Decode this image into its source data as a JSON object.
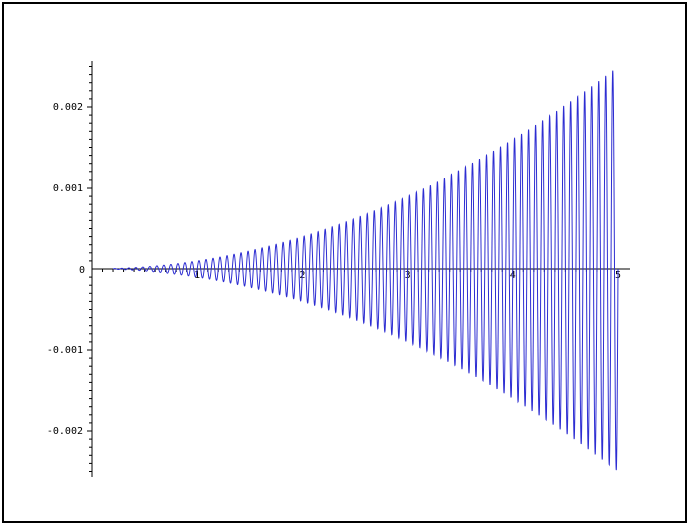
{
  "chart_data": {
    "type": "line",
    "title": "",
    "xlabel": "",
    "ylabel": "",
    "xlim": [
      0,
      5
    ],
    "ylim": [
      -0.0026,
      0.0026
    ],
    "grid": false,
    "x_ticks": [
      {
        "value": 0,
        "label": "0"
      },
      {
        "value": 1,
        "label": "1"
      },
      {
        "value": 2,
        "label": "2"
      },
      {
        "value": 3,
        "label": "3"
      },
      {
        "value": 4,
        "label": "4"
      },
      {
        "value": 5,
        "label": "5"
      }
    ],
    "y_ticks": [
      {
        "value": 0.002,
        "label": "0.002"
      },
      {
        "value": 0.001,
        "label": "0.001"
      },
      {
        "value": -0.001,
        "label": "-0.001"
      },
      {
        "value": -0.002,
        "label": "-0.002"
      }
    ],
    "series": [
      {
        "color": "#2d2dd2",
        "x_start": 0.2,
        "x_end": 5.0,
        "amplitude_model": "0.0001 * x^2",
        "oscillation_frequency": 15,
        "samples": [
          {
            "x": 0.5,
            "amplitude": 2.5e-05
          },
          {
            "x": 1.0,
            "amplitude": 0.0001
          },
          {
            "x": 2.0,
            "amplitude": 0.0004
          },
          {
            "x": 3.0,
            "amplitude": 0.0009
          },
          {
            "x": 4.0,
            "amplitude": 0.0016
          },
          {
            "x": 5.0,
            "amplitude": 0.0025
          }
        ]
      }
    ]
  }
}
